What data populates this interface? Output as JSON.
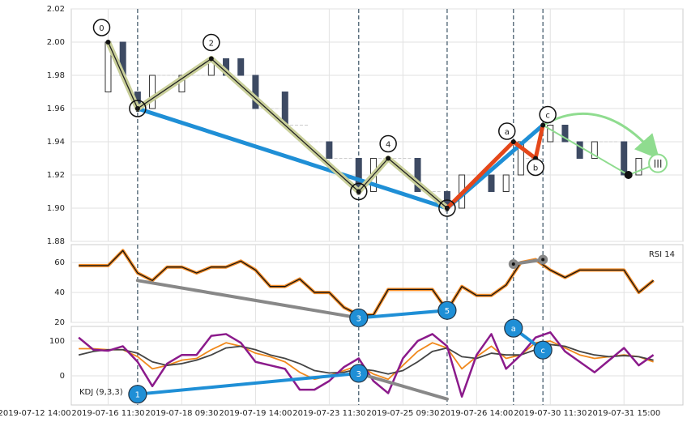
{
  "chart_data": [
    {
      "type": "candlestick",
      "xlim": [
        5,
        88
      ],
      "xticks": [
        {
          "value": 0,
          "label": "2019-07-12 14:00"
        },
        {
          "value": 10,
          "label": "2019-07-16 11:30"
        },
        {
          "value": 20,
          "label": "2019-07-18 09:30"
        },
        {
          "value": 30,
          "label": "2019-07-19 14:00"
        },
        {
          "value": 40,
          "label": "2019-07-23 11:30"
        },
        {
          "value": 50,
          "label": "2019-07-25 09:30"
        },
        {
          "value": 60,
          "label": "2019-07-26 14:00"
        },
        {
          "value": 70,
          "label": "2019-07-30 11:30"
        },
        {
          "value": 80,
          "label": "2019-07-31 15:00"
        }
      ],
      "ylim": [
        1.88,
        2.02
      ],
      "yticks": [
        1.88,
        {
          "value": 1.9,
          "label": "1.90"
        },
        1.92,
        1.94,
        1.96,
        1.98,
        {
          "value": 2.0,
          "label": "2.00"
        },
        2.02
      ],
      "grid": true,
      "up_color": "#ffffff",
      "down_color": "#3d4a63",
      "candles": {
        "x": [
          10,
          12,
          14,
          16,
          18,
          20,
          22,
          24,
          26,
          28,
          30,
          32,
          34,
          36,
          38,
          40,
          42,
          44,
          46,
          48,
          50,
          52,
          54,
          56,
          58,
          60,
          62,
          64,
          66,
          68,
          70,
          72,
          74,
          76,
          78,
          80,
          82
        ],
        "open": [
          1.97,
          2.0,
          1.97,
          1.96,
          1.98,
          1.97,
          1.98,
          1.98,
          1.99,
          1.99,
          1.98,
          1.96,
          1.97,
          1.95,
          1.94,
          1.94,
          1.93,
          1.93,
          1.91,
          1.93,
          1.93,
          1.93,
          1.91,
          1.91,
          1.9,
          1.92,
          1.92,
          1.91,
          1.92,
          1.93,
          1.94,
          1.95,
          1.94,
          1.93,
          1.94,
          1.94,
          1.92
        ],
        "close": [
          2.0,
          1.98,
          1.96,
          1.98,
          1.98,
          1.98,
          1.98,
          1.99,
          1.98,
          1.98,
          1.96,
          1.96,
          1.95,
          1.95,
          1.94,
          1.93,
          1.93,
          1.91,
          1.93,
          1.93,
          1.93,
          1.91,
          1.91,
          1.9,
          1.92,
          1.92,
          1.91,
          1.92,
          1.94,
          1.93,
          1.95,
          1.94,
          1.93,
          1.94,
          1.94,
          1.92,
          1.93
        ]
      },
      "vlines": [
        14,
        44,
        56,
        65,
        69
      ],
      "waves": {
        "labels": [
          "0",
          "1",
          "2",
          "3",
          "4",
          "5",
          "a",
          "b",
          "c"
        ],
        "x": [
          10,
          14,
          24,
          44,
          48,
          56,
          65,
          68,
          69
        ],
        "values": [
          2.0,
          1.96,
          1.99,
          1.91,
          1.93,
          1.9,
          1.94,
          1.93,
          1.95
        ]
      },
      "trend_lines": [
        {
          "color": "#1f8fd6",
          "x": [
            14,
            56,
            69
          ],
          "values": [
            1.96,
            1.9,
            1.95
          ]
        },
        {
          "color": "#222222",
          "glow": "#c9cf9a",
          "x": [
            10,
            14,
            24,
            44,
            48,
            56
          ],
          "values": [
            2.0,
            1.96,
            1.99,
            1.91,
            1.93,
            1.9
          ]
        },
        {
          "color": "#e4471a",
          "x": [
            56,
            65,
            68,
            69
          ],
          "values": [
            1.9,
            1.94,
            1.93,
            1.95
          ]
        }
      ],
      "projection": {
        "color": "#8fdc8f",
        "x": [
          69,
          80.6,
          84.6
        ],
        "values": [
          1.95,
          1.92,
          1.927
        ],
        "end_label": "|||"
      }
    },
    {
      "type": "line",
      "label": "RSI 14",
      "ylim": [
        20,
        72
      ],
      "yticks": [
        20,
        40,
        60
      ],
      "grid": true,
      "x": [
        6,
        8,
        10,
        12,
        14,
        16,
        18,
        20,
        22,
        24,
        26,
        28,
        30,
        32,
        34,
        36,
        38,
        40,
        42,
        44,
        46,
        48,
        50,
        52,
        54,
        56,
        58,
        60,
        62,
        64,
        66,
        68,
        70,
        72,
        74,
        76,
        78,
        80,
        82,
        84
      ],
      "series": [
        {
          "color": "#111111",
          "glow": "#f28c28",
          "values": [
            58,
            58,
            58,
            68,
            53,
            48,
            57,
            57,
            53,
            57,
            57,
            61,
            55,
            44,
            44,
            49,
            40,
            40,
            30,
            25,
            25,
            42,
            42,
            42,
            42,
            28,
            44,
            38,
            38,
            45,
            60,
            62,
            55,
            50,
            55,
            55,
            55,
            55,
            40,
            48
          ]
        }
      ],
      "markers": {
        "labels": [
          "3",
          "5"
        ],
        "x": [
          44,
          56
        ],
        "values": [
          23,
          28
        ]
      },
      "trend_lines": [
        {
          "color": "#888888",
          "x": [
            14,
            44
          ],
          "values": [
            48,
            23
          ]
        },
        {
          "color": "#1f8fd6",
          "x": [
            44,
            56
          ],
          "values": [
            23,
            28
          ]
        },
        {
          "color": "#888888",
          "x": [
            65,
            69
          ],
          "values": [
            59,
            62
          ]
        }
      ]
    },
    {
      "type": "line",
      "label": "KDJ (9,3,3)",
      "ylim": [
        -84,
        142
      ],
      "yticks": [
        0,
        100
      ],
      "grid": true,
      "x": [
        6,
        8,
        10,
        12,
        14,
        16,
        18,
        20,
        22,
        24,
        26,
        28,
        30,
        32,
        34,
        36,
        38,
        40,
        42,
        44,
        46,
        48,
        50,
        52,
        54,
        56,
        58,
        60,
        62,
        64,
        66,
        68,
        70,
        72,
        74,
        76,
        78,
        80,
        82,
        84
      ],
      "series": [
        {
          "color": "#f0881c",
          "values": [
            78,
            78,
            75,
            75,
            55,
            20,
            30,
            45,
            50,
            75,
            95,
            85,
            65,
            55,
            40,
            10,
            -10,
            0,
            15,
            30,
            5,
            -10,
            30,
            70,
            95,
            80,
            20,
            55,
            85,
            50,
            60,
            95,
            100,
            80,
            60,
            50,
            55,
            60,
            55,
            40
          ]
        },
        {
          "color": "#444444",
          "values": [
            60,
            70,
            75,
            75,
            65,
            40,
            30,
            35,
            45,
            60,
            80,
            85,
            75,
            60,
            50,
            35,
            15,
            8,
            10,
            20,
            15,
            5,
            15,
            40,
            70,
            80,
            55,
            50,
            65,
            60,
            60,
            75,
            90,
            85,
            70,
            60,
            55,
            58,
            55,
            45
          ]
        },
        {
          "color": "#8b1a8b",
          "values": [
            110,
            75,
            72,
            85,
            40,
            -30,
            35,
            60,
            60,
            115,
            120,
            95,
            40,
            30,
            20,
            -40,
            -40,
            -15,
            25,
            50,
            -15,
            -50,
            50,
            100,
            120,
            85,
            -60,
            60,
            120,
            20,
            60,
            110,
            125,
            70,
            40,
            10,
            45,
            80,
            30,
            60
          ]
        }
      ],
      "markers": {
        "labels": [
          "1",
          "3",
          "a",
          "c"
        ],
        "x": [
          14,
          44,
          65,
          69
        ],
        "values": [
          -53,
          7,
          137,
          74
        ]
      },
      "trend_lines": [
        {
          "color": "#1f8fd6",
          "x": [
            14,
            44
          ],
          "values": [
            -53,
            7
          ]
        },
        {
          "color": "#888888",
          "x": [
            44,
            56
          ],
          "values": [
            7,
            -67
          ]
        },
        {
          "color": "#1f8fd6",
          "x": [
            65,
            69
          ],
          "values": [
            137,
            74
          ]
        }
      ]
    }
  ]
}
